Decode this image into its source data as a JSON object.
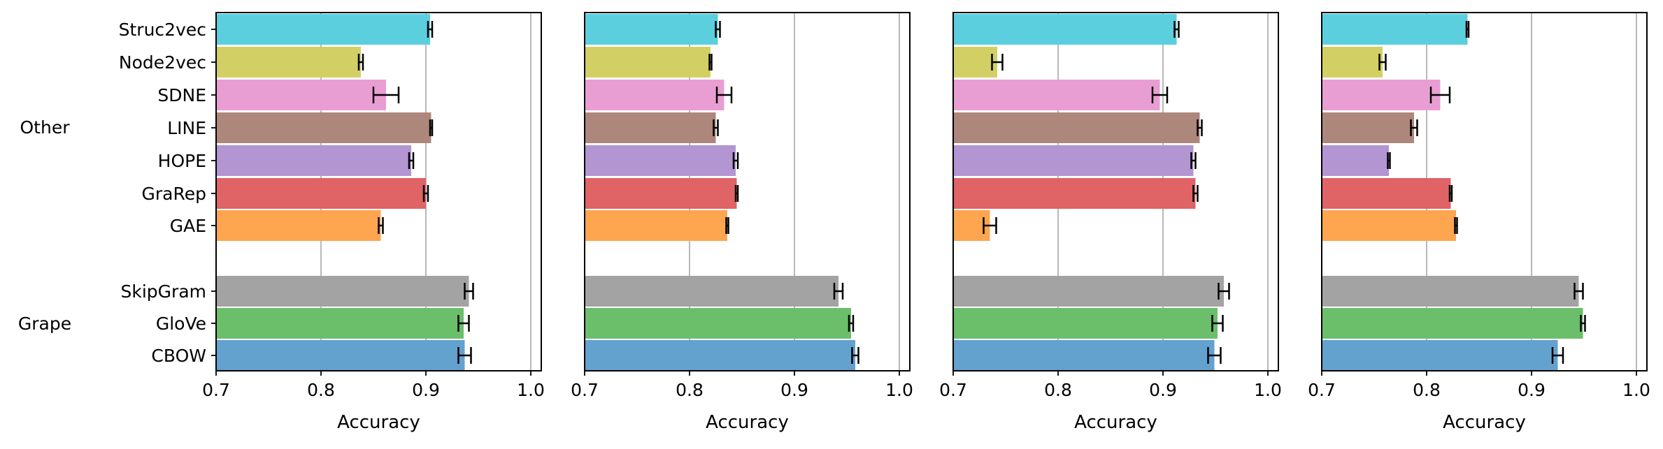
{
  "chart_data": {
    "type": "bar",
    "orientation": "horizontal",
    "xlabel": "Accuracy",
    "xlim": [
      0.7,
      1.0
    ],
    "xticks": [
      "0.7",
      "0.8",
      "0.9",
      "1.0"
    ],
    "grid": "vertical",
    "groups": [
      {
        "label": "Other",
        "categories": [
          "Struc2vec",
          "Node2vec",
          "SDNE",
          "LINE",
          "HOPE",
          "GraRep",
          "GAE"
        ]
      },
      {
        "label": "Grape",
        "categories": [
          "SkipGram",
          "GloVe",
          "CBOW"
        ]
      }
    ],
    "colors": {
      "Struc2vec": "#5bcfdd",
      "Node2vec": "#d2d064",
      "SDNE": "#e99ed3",
      "LINE": "#ad877c",
      "HOPE": "#b295d1",
      "GraRep": "#e06365",
      "GAE": "#fea54f",
      "SkipGram": "#a3a3a3",
      "GloVe": "#6bbe6a",
      "CBOW": "#63a1cf"
    },
    "panels": [
      {
        "values": {
          "Struc2vec": 0.904,
          "Node2vec": 0.838,
          "SDNE": 0.862,
          "LINE": 0.905,
          "HOPE": 0.886,
          "GraRep": 0.9,
          "GAE": 0.857,
          "SkipGram": 0.941,
          "GloVe": 0.936,
          "CBOW": 0.937
        },
        "errors": {
          "Struc2vec": 0.002,
          "Node2vec": 0.002,
          "SDNE": 0.012,
          "LINE": 0.001,
          "HOPE": 0.002,
          "GraRep": 0.002,
          "GAE": 0.002,
          "SkipGram": 0.004,
          "GloVe": 0.005,
          "CBOW": 0.006
        }
      },
      {
        "values": {
          "Struc2vec": 0.827,
          "Node2vec": 0.82,
          "SDNE": 0.833,
          "LINE": 0.825,
          "HOPE": 0.844,
          "GraRep": 0.845,
          "GAE": 0.836,
          "SkipGram": 0.942,
          "GloVe": 0.954,
          "CBOW": 0.958
        },
        "errors": {
          "Struc2vec": 0.002,
          "Node2vec": 0.001,
          "SDNE": 0.007,
          "LINE": 0.002,
          "HOPE": 0.002,
          "GraRep": 0.001,
          "GAE": 0.001,
          "SkipGram": 0.004,
          "GloVe": 0.002,
          "CBOW": 0.003
        }
      },
      {
        "values": {
          "Struc2vec": 0.913,
          "Node2vec": 0.742,
          "SDNE": 0.897,
          "LINE": 0.935,
          "HOPE": 0.929,
          "GraRep": 0.931,
          "GAE": 0.735,
          "SkipGram": 0.958,
          "GloVe": 0.952,
          "CBOW": 0.949
        },
        "errors": {
          "Struc2vec": 0.002,
          "Node2vec": 0.005,
          "SDNE": 0.007,
          "LINE": 0.002,
          "HOPE": 0.002,
          "GraRep": 0.002,
          "GAE": 0.006,
          "SkipGram": 0.005,
          "GloVe": 0.005,
          "CBOW": 0.006
        }
      },
      {
        "values": {
          "Struc2vec": 0.839,
          "Node2vec": 0.758,
          "SDNE": 0.813,
          "LINE": 0.788,
          "HOPE": 0.764,
          "GraRep": 0.823,
          "GAE": 0.828,
          "SkipGram": 0.945,
          "GloVe": 0.949,
          "CBOW": 0.925
        },
        "errors": {
          "Struc2vec": 0.001,
          "Node2vec": 0.003,
          "SDNE": 0.009,
          "LINE": 0.003,
          "HOPE": 0.001,
          "GraRep": 0.001,
          "GAE": 0.001,
          "SkipGram": 0.004,
          "GloVe": 0.002,
          "CBOW": 0.005
        }
      }
    ]
  }
}
